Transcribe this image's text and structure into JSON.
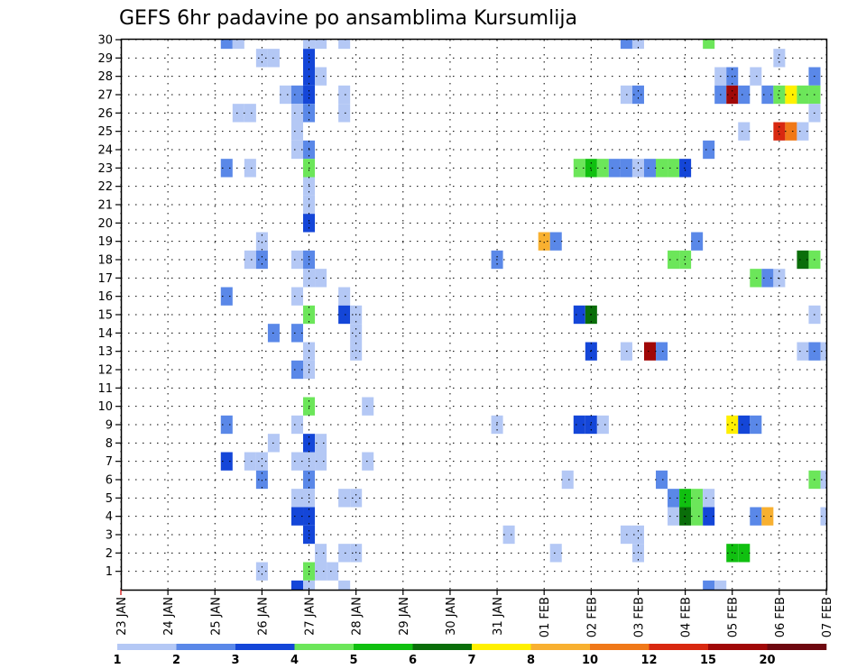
{
  "chart_data": {
    "type": "heatmap",
    "title": "GEFS 6hr padavine po ansamblima Kursumlija",
    "xlabel": "",
    "ylabel": "",
    "x_unit": "6h steps from 23 JAN 00Z",
    "x_range": [
      0,
      60
    ],
    "y_range": [
      0,
      30
    ],
    "x_ticks": [
      {
        "step": 0,
        "label": "23 JAN"
      },
      {
        "step": 4,
        "label": "24 JAN"
      },
      {
        "step": 8,
        "label": "25 JAN"
      },
      {
        "step": 12,
        "label": "26 JAN"
      },
      {
        "step": 16,
        "label": "27 JAN"
      },
      {
        "step": 20,
        "label": "28 JAN"
      },
      {
        "step": 24,
        "label": "29 JAN"
      },
      {
        "step": 28,
        "label": "30 JAN"
      },
      {
        "step": 32,
        "label": "31 JAN"
      },
      {
        "step": 36,
        "label": "01 FEB"
      },
      {
        "step": 40,
        "label": "02 FEB"
      },
      {
        "step": 44,
        "label": "03 FEB"
      },
      {
        "step": 48,
        "label": "04 FEB"
      },
      {
        "step": 52,
        "label": "05 FEB"
      },
      {
        "step": 56,
        "label": "06 FEB"
      },
      {
        "step": 60,
        "label": "07 FEB"
      }
    ],
    "y_ticks": [
      "1",
      "2",
      "3",
      "4",
      "5",
      "6",
      "7",
      "8",
      "9",
      "10",
      "11",
      "12",
      "13",
      "14",
      "15",
      "16",
      "17",
      "18",
      "19",
      "20",
      "21",
      "22",
      "23",
      "24",
      "25",
      "26",
      "27",
      "28",
      "29",
      "30"
    ],
    "grid": true,
    "colorbar": {
      "boundaries": [
        "1",
        "2",
        "3",
        "4",
        "5",
        "6",
        "7",
        "8",
        "10",
        "12",
        "15",
        "20"
      ],
      "colors": [
        "#b4c8f5",
        "#5a88e8",
        "#1446d8",
        "#6ce65a",
        "#10c010",
        "#0a6e0a",
        "#fff000",
        "#f8b030",
        "#f07818",
        "#d82810",
        "#a00808",
        "#6e0810"
      ]
    },
    "cells": [
      [
        9,
        30,
        1
      ],
      [
        10,
        30,
        0
      ],
      [
        16,
        30,
        0
      ],
      [
        17,
        30,
        0
      ],
      [
        19,
        30,
        0
      ],
      [
        43,
        30,
        1
      ],
      [
        44,
        30,
        0
      ],
      [
        50,
        30,
        3
      ],
      [
        12,
        29,
        0
      ],
      [
        13,
        29,
        0
      ],
      [
        16,
        29,
        2
      ],
      [
        56,
        29,
        0
      ],
      [
        16,
        28,
        2
      ],
      [
        17,
        28,
        0
      ],
      [
        51,
        28,
        0
      ],
      [
        52,
        28,
        1
      ],
      [
        54,
        28,
        0
      ],
      [
        59,
        28,
        1
      ],
      [
        14,
        27,
        0
      ],
      [
        15,
        27,
        1
      ],
      [
        16,
        27,
        2
      ],
      [
        19,
        27,
        0
      ],
      [
        43,
        27,
        0
      ],
      [
        44,
        27,
        1
      ],
      [
        51,
        27,
        1
      ],
      [
        52,
        27,
        10
      ],
      [
        53,
        27,
        1
      ],
      [
        55,
        27,
        1
      ],
      [
        56,
        27,
        3
      ],
      [
        57,
        27,
        6
      ],
      [
        58,
        27,
        3
      ],
      [
        59,
        27,
        3
      ],
      [
        10,
        26,
        0
      ],
      [
        11,
        26,
        0
      ],
      [
        15,
        26,
        0
      ],
      [
        16,
        26,
        1
      ],
      [
        19,
        26,
        0
      ],
      [
        59,
        26,
        0
      ],
      [
        15,
        25,
        0
      ],
      [
        53,
        25,
        0
      ],
      [
        56,
        25,
        9
      ],
      [
        57,
        25,
        8
      ],
      [
        58,
        25,
        0
      ],
      [
        15,
        24,
        0
      ],
      [
        16,
        24,
        1
      ],
      [
        50,
        24,
        1
      ],
      [
        9,
        23,
        1
      ],
      [
        11,
        23,
        0
      ],
      [
        16,
        23,
        3
      ],
      [
        39,
        23,
        3
      ],
      [
        40,
        23,
        4
      ],
      [
        41,
        23,
        3
      ],
      [
        42,
        23,
        1
      ],
      [
        43,
        23,
        1
      ],
      [
        44,
        23,
        0
      ],
      [
        45,
        23,
        1
      ],
      [
        46,
        23,
        3
      ],
      [
        47,
        23,
        3
      ],
      [
        48,
        23,
        2
      ],
      [
        16,
        22,
        0
      ],
      [
        16,
        21,
        0
      ],
      [
        16,
        20,
        2
      ],
      [
        12,
        19,
        0
      ],
      [
        36,
        19,
        7
      ],
      [
        37,
        19,
        1
      ],
      [
        49,
        19,
        1
      ],
      [
        11,
        18,
        0
      ],
      [
        12,
        18,
        1
      ],
      [
        15,
        18,
        0
      ],
      [
        16,
        18,
        1
      ],
      [
        32,
        18,
        1
      ],
      [
        47,
        18,
        3
      ],
      [
        48,
        18,
        3
      ],
      [
        58,
        18,
        5
      ],
      [
        59,
        18,
        3
      ],
      [
        16,
        17,
        0
      ],
      [
        17,
        17,
        0
      ],
      [
        54,
        17,
        3
      ],
      [
        55,
        17,
        1
      ],
      [
        56,
        17,
        0
      ],
      [
        9,
        16,
        1
      ],
      [
        15,
        16,
        0
      ],
      [
        19,
        16,
        0
      ],
      [
        16,
        15,
        3
      ],
      [
        19,
        15,
        2
      ],
      [
        20,
        15,
        0
      ],
      [
        39,
        15,
        2
      ],
      [
        40,
        15,
        5
      ],
      [
        59,
        15,
        0
      ],
      [
        13,
        14,
        1
      ],
      [
        15,
        14,
        1
      ],
      [
        20,
        14,
        0
      ],
      [
        16,
        13,
        0
      ],
      [
        20,
        13,
        0
      ],
      [
        40,
        13,
        2
      ],
      [
        43,
        13,
        0
      ],
      [
        45,
        13,
        10
      ],
      [
        46,
        13,
        1
      ],
      [
        58,
        13,
        0
      ],
      [
        59,
        13,
        1
      ],
      [
        60,
        13,
        0
      ],
      [
        15,
        12,
        1
      ],
      [
        16,
        12,
        0
      ],
      [
        16,
        10,
        3
      ],
      [
        21,
        10,
        0
      ],
      [
        9,
        9,
        1
      ],
      [
        15,
        9,
        0
      ],
      [
        32,
        9,
        0
      ],
      [
        39,
        9,
        2
      ],
      [
        40,
        9,
        2
      ],
      [
        41,
        9,
        0
      ],
      [
        52,
        9,
        6
      ],
      [
        53,
        9,
        2
      ],
      [
        54,
        9,
        1
      ],
      [
        13,
        8,
        0
      ],
      [
        16,
        8,
        2
      ],
      [
        17,
        8,
        0
      ],
      [
        9,
        7,
        2
      ],
      [
        11,
        7,
        0
      ],
      [
        12,
        7,
        0
      ],
      [
        15,
        7,
        0
      ],
      [
        16,
        7,
        0
      ],
      [
        17,
        7,
        0
      ],
      [
        21,
        7,
        0
      ],
      [
        12,
        6,
        1
      ],
      [
        16,
        6,
        1
      ],
      [
        38,
        6,
        0
      ],
      [
        46,
        6,
        1
      ],
      [
        59,
        6,
        3
      ],
      [
        60,
        6,
        0
      ],
      [
        15,
        5,
        0
      ],
      [
        16,
        5,
        0
      ],
      [
        19,
        5,
        0
      ],
      [
        20,
        5,
        0
      ],
      [
        47,
        5,
        1
      ],
      [
        48,
        5,
        4
      ],
      [
        49,
        5,
        3
      ],
      [
        50,
        5,
        0
      ],
      [
        15,
        4,
        2
      ],
      [
        16,
        4,
        2
      ],
      [
        47,
        4,
        0
      ],
      [
        48,
        4,
        5
      ],
      [
        49,
        4,
        3
      ],
      [
        50,
        4,
        2
      ],
      [
        54,
        4,
        1
      ],
      [
        55,
        4,
        7
      ],
      [
        60,
        4,
        0
      ],
      [
        16,
        3,
        2
      ],
      [
        33,
        3,
        0
      ],
      [
        43,
        3,
        0
      ],
      [
        44,
        3,
        0
      ],
      [
        17,
        2,
        0
      ],
      [
        19,
        2,
        0
      ],
      [
        20,
        2,
        0
      ],
      [
        37,
        2,
        0
      ],
      [
        44,
        2,
        0
      ],
      [
        52,
        2,
        4
      ],
      [
        53,
        2,
        4
      ],
      [
        12,
        1,
        0
      ],
      [
        16,
        1,
        3
      ],
      [
        17,
        1,
        0
      ],
      [
        18,
        1,
        0
      ],
      [
        15,
        0,
        2
      ],
      [
        16,
        0,
        0
      ],
      [
        19,
        0,
        0
      ],
      [
        50,
        0,
        1
      ],
      [
        51,
        0,
        0
      ]
    ]
  }
}
